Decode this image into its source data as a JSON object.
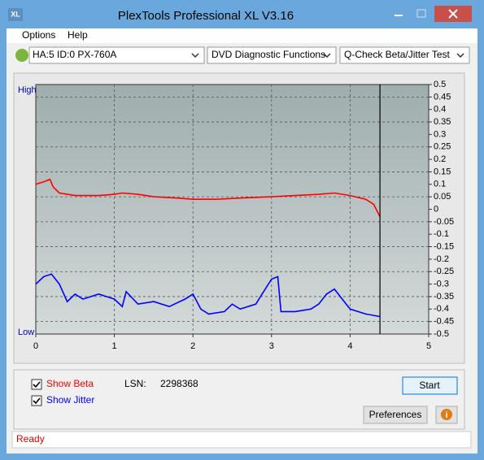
{
  "window": {
    "title": "PlexTools Professional XL V3.16",
    "icon": "XL"
  },
  "menu": [
    "Options",
    "Help"
  ],
  "toolbar": [
    "HA:5 ID:0  PX-760A",
    "DVD Diagnostic Functions",
    "Q-Check Beta/Jitter Test"
  ],
  "chart_data": {
    "type": "line",
    "high_label": "High",
    "low_label": "Low",
    "xlim": [
      0,
      5
    ],
    "xticks": [
      0,
      1,
      2,
      3,
      4,
      5
    ],
    "ylim": [
      -0.5,
      0.5
    ],
    "yticks": [
      0.5,
      0.45,
      0.4,
      0.35,
      0.3,
      0.25,
      0.2,
      0.15,
      0.1,
      0.05,
      0,
      -0.05,
      -0.1,
      -0.15,
      -0.2,
      -0.25,
      -0.3,
      -0.35,
      -0.4,
      -0.45,
      -0.5
    ],
    "grid": true,
    "marker_x": 4.38,
    "series": [
      {
        "name": "Beta",
        "color": "#ff0000",
        "x": [
          0,
          0.1,
          0.18,
          0.22,
          0.3,
          0.5,
          0.8,
          1.0,
          1.1,
          1.3,
          1.5,
          1.8,
          2.0,
          2.3,
          2.6,
          3.0,
          3.3,
          3.6,
          3.8,
          4.0,
          4.2,
          4.3,
          4.38
        ],
        "values": [
          0.1,
          0.11,
          0.12,
          0.09,
          0.065,
          0.055,
          0.055,
          0.06,
          0.065,
          0.06,
          0.05,
          0.045,
          0.04,
          0.04,
          0.045,
          0.05,
          0.055,
          0.06,
          0.065,
          0.055,
          0.04,
          0.02,
          -0.03
        ]
      },
      {
        "name": "Jitter",
        "color": "#0000ff",
        "x": [
          0,
          0.1,
          0.2,
          0.3,
          0.4,
          0.5,
          0.6,
          0.8,
          1.0,
          1.1,
          1.15,
          1.3,
          1.5,
          1.7,
          1.9,
          2.0,
          2.1,
          2.2,
          2.4,
          2.5,
          2.6,
          2.8,
          2.9,
          3.0,
          3.08,
          3.12,
          3.3,
          3.5,
          3.6,
          3.7,
          3.8,
          3.9,
          4.0,
          4.2,
          4.38
        ],
        "values": [
          -0.3,
          -0.27,
          -0.26,
          -0.3,
          -0.37,
          -0.34,
          -0.36,
          -0.34,
          -0.36,
          -0.39,
          -0.33,
          -0.38,
          -0.37,
          -0.39,
          -0.36,
          -0.34,
          -0.4,
          -0.42,
          -0.41,
          -0.38,
          -0.4,
          -0.38,
          -0.33,
          -0.28,
          -0.27,
          -0.41,
          -0.41,
          -0.4,
          -0.38,
          -0.34,
          -0.32,
          -0.36,
          -0.4,
          -0.42,
          -0.43
        ]
      }
    ]
  },
  "controls": {
    "show_beta": {
      "label": "Show Beta",
      "checked": true
    },
    "show_jitter": {
      "label": "Show Jitter",
      "checked": true
    },
    "lsn_label": "LSN:",
    "lsn_value": "2298368",
    "start": "Start",
    "preferences": "Preferences",
    "info": "i"
  },
  "status": "Ready"
}
